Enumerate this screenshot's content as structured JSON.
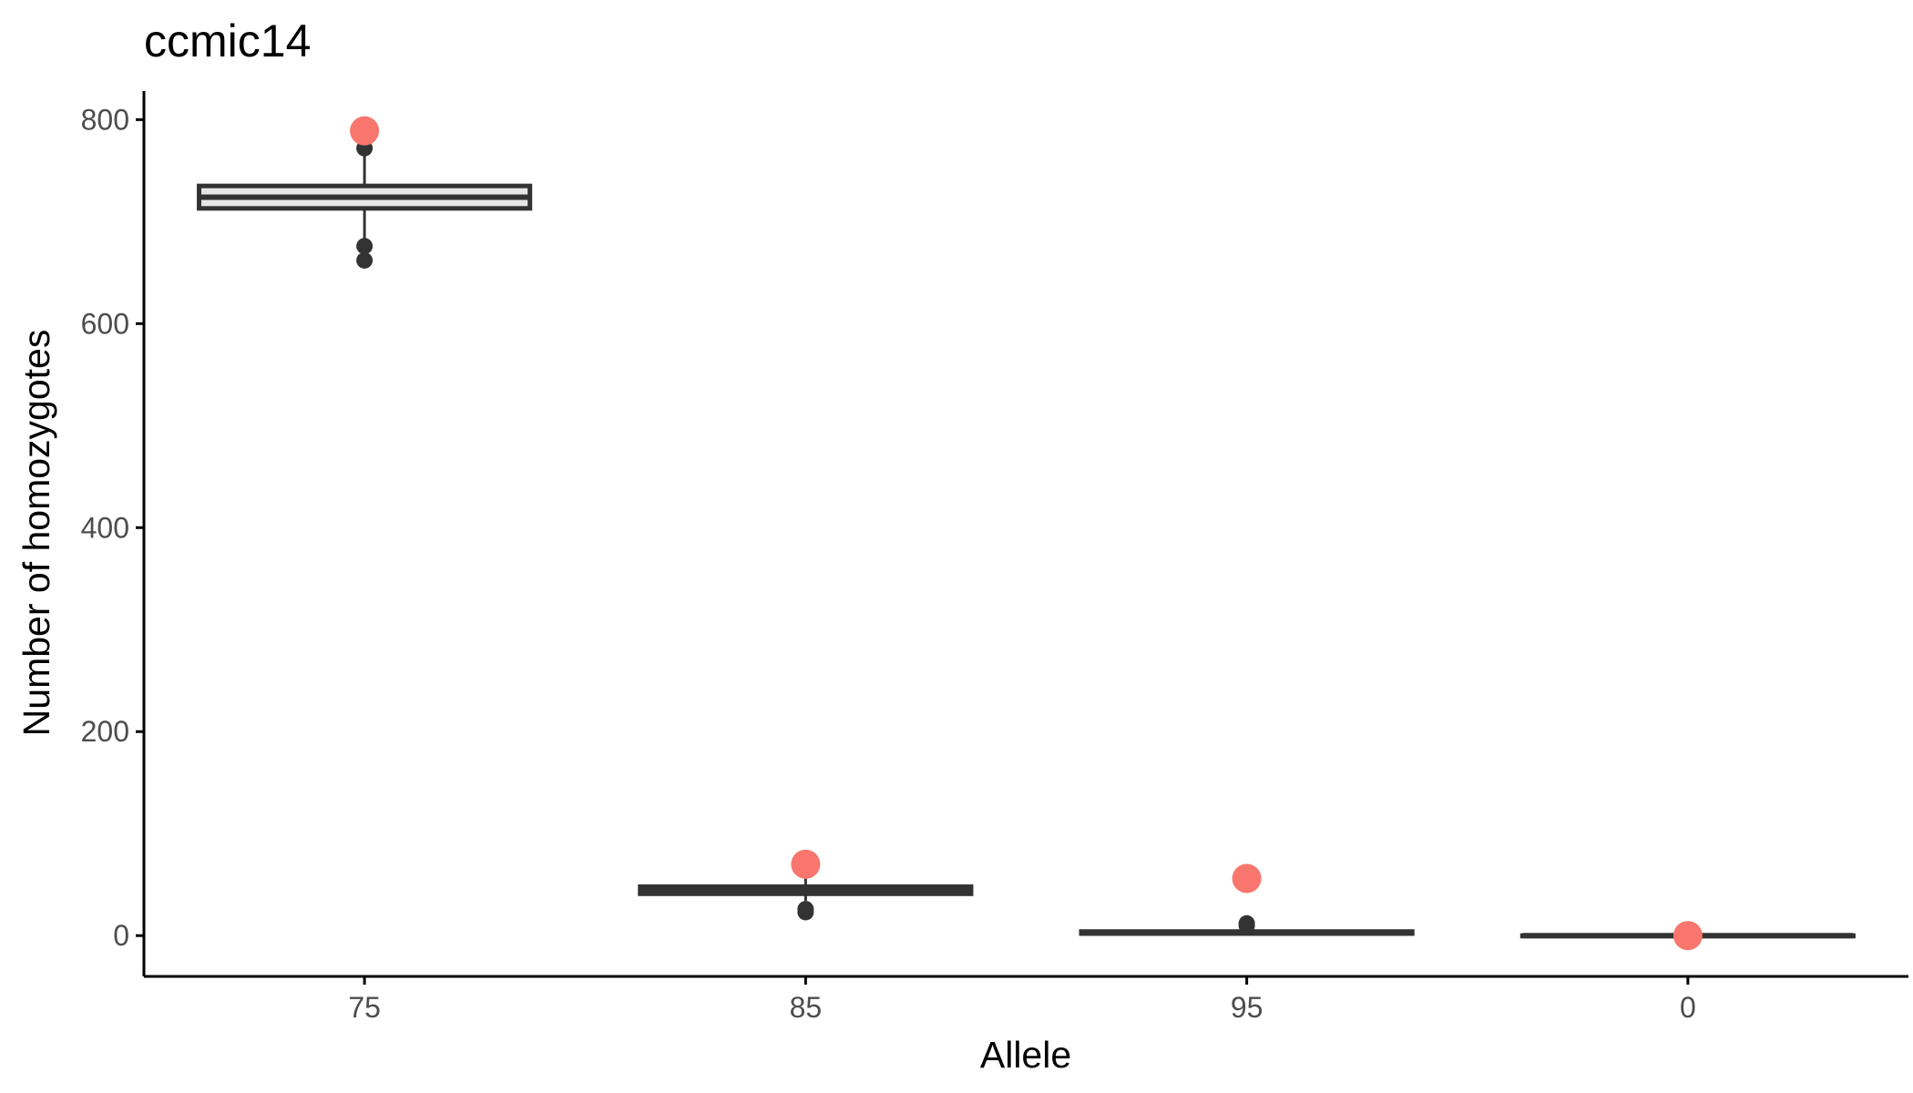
{
  "chart_data": {
    "type": "box",
    "title": "ccmic14",
    "xlabel": "Allele",
    "ylabel": "Number of homozygotes",
    "categories": [
      "75",
      "85",
      "95",
      "0"
    ],
    "ylim": [
      -40,
      828
    ],
    "y_ticks": [
      0,
      200,
      400,
      600,
      800
    ],
    "y_tick_labels": [
      "0",
      "200",
      "400",
      "600",
      "800"
    ],
    "grid": false,
    "legend": "none",
    "boxes": [
      {
        "category": "75",
        "q1": 713,
        "median": 724,
        "q3": 735,
        "whisker_low": 679,
        "whisker_high": 774,
        "outliers": [
          662,
          676,
          772
        ]
      },
      {
        "category": "85",
        "q1": 41,
        "median": 45,
        "q3": 48,
        "whisker_low": 34,
        "whisker_high": 56,
        "outliers": [
          23,
          26
        ]
      },
      {
        "category": "95",
        "q1": 2,
        "median": 3,
        "q3": 4,
        "whisker_low": 0,
        "whisker_high": 6,
        "outliers": [
          10,
          12
        ]
      },
      {
        "category": "0",
        "q1": 0,
        "median": 0,
        "q3": 0,
        "whisker_low": 0,
        "whisker_high": 0,
        "outliers": []
      }
    ],
    "observed": {
      "values": [
        789,
        70,
        56,
        0
      ],
      "color": "#F8766D"
    },
    "colors": {
      "box_line": "#333333",
      "box_fill": "#e6e6e6",
      "axis": "#000000",
      "observed": "#F8766D"
    }
  }
}
